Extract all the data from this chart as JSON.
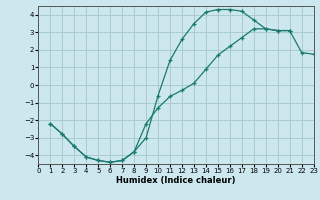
{
  "xlabel": "Humidex (Indice chaleur)",
  "bg_color": "#cce8ee",
  "grid_color": "#aacccc",
  "line_color": "#1a7a6e",
  "marker": "+",
  "xlim": [
    0,
    23
  ],
  "ylim": [
    -4.5,
    4.5
  ],
  "xticks": [
    0,
    1,
    2,
    3,
    4,
    5,
    6,
    7,
    8,
    9,
    10,
    11,
    12,
    13,
    14,
    15,
    16,
    17,
    18,
    19,
    20,
    21,
    22,
    23
  ],
  "yticks": [
    -4,
    -3,
    -2,
    -1,
    0,
    1,
    2,
    3,
    4
  ],
  "curve1_x": [
    1,
    2,
    3,
    4,
    5,
    6,
    7,
    8,
    9,
    10,
    11,
    12,
    13,
    14,
    15,
    16,
    17,
    18,
    19,
    20,
    21
  ],
  "curve1_y": [
    -2.2,
    -2.8,
    -3.5,
    -4.1,
    -4.3,
    -4.4,
    -4.3,
    -3.8,
    -3.0,
    -0.6,
    1.4,
    2.6,
    3.5,
    4.15,
    4.3,
    4.3,
    4.2,
    3.7,
    3.2,
    3.1,
    3.1
  ],
  "curve2_x": [
    1,
    2,
    3,
    4,
    5,
    6,
    7,
    8,
    9,
    10,
    11,
    12,
    13,
    14,
    15,
    16,
    17,
    18,
    19,
    20,
    21,
    22,
    23
  ],
  "curve2_y": [
    -2.2,
    -2.8,
    -3.5,
    -4.1,
    -4.3,
    -4.4,
    -4.3,
    -3.8,
    -2.2,
    -1.3,
    -0.65,
    -0.3,
    0.1,
    0.9,
    1.7,
    2.2,
    2.7,
    3.2,
    3.2,
    3.1,
    3.1,
    1.85,
    1.75
  ]
}
